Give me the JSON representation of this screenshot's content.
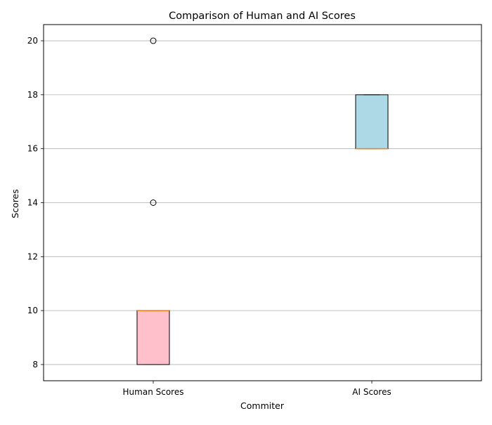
{
  "chart_data": {
    "type": "box",
    "title": "Comparison of Human and AI Scores",
    "xlabel": "Commiter",
    "ylabel": "Scores",
    "ylim": [
      7.4,
      20.6
    ],
    "yticks": [
      8,
      10,
      12,
      14,
      16,
      18,
      20
    ],
    "grid": "y",
    "categories": [
      "Human Scores",
      "AI Scores"
    ],
    "boxes": [
      {
        "name": "Human Scores",
        "q1": 8,
        "median": 10,
        "q3": 10,
        "whisker_low": 8,
        "whisker_high": 10,
        "outliers": [
          14,
          20
        ],
        "fill": "#ffc0cb"
      },
      {
        "name": "AI Scores",
        "q1": 16,
        "median": 16,
        "q3": 18,
        "whisker_low": 16,
        "whisker_high": 18,
        "outliers": [],
        "fill": "#add8e6"
      }
    ],
    "median_color": "#ff7f0e",
    "grid_color": "#b0b0b0"
  }
}
